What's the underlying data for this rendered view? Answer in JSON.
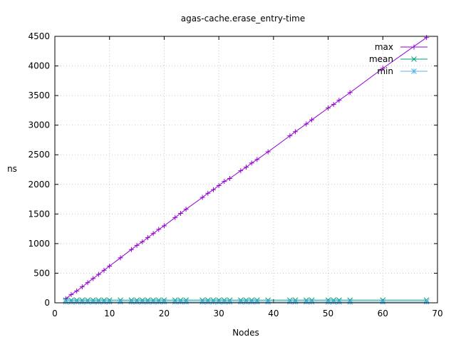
{
  "chart_data": {
    "type": "line",
    "title": "agas-cache.erase_entry-time",
    "xlabel": "Nodes",
    "ylabel": "ns",
    "xlim": [
      0,
      70
    ],
    "ylim": [
      0,
      4500
    ],
    "xticks": [
      0,
      10,
      20,
      30,
      40,
      50,
      60,
      70
    ],
    "yticks": [
      0,
      500,
      1000,
      1500,
      2000,
      2500,
      3000,
      3500,
      4000,
      4500
    ],
    "grid": true,
    "legend_position": "top-right",
    "x": [
      2,
      3,
      4,
      5,
      6,
      7,
      8,
      9,
      10,
      12,
      14,
      15,
      16,
      17,
      18,
      19,
      20,
      22,
      23,
      24,
      27,
      28,
      29,
      30,
      31,
      32,
      34,
      35,
      36,
      37,
      39,
      43,
      44,
      46,
      47,
      50,
      51,
      52,
      54,
      60,
      68
    ],
    "series": [
      {
        "name": "max",
        "color": "#9400d3",
        "marker": "plus",
        "values": [
          70,
          140,
          200,
          270,
          340,
          410,
          480,
          550,
          620,
          760,
          900,
          970,
          1030,
          1100,
          1170,
          1240,
          1300,
          1440,
          1510,
          1580,
          1780,
          1850,
          1910,
          1980,
          2050,
          2100,
          2230,
          2290,
          2360,
          2420,
          2550,
          2820,
          2890,
          3020,
          3090,
          3290,
          3350,
          3420,
          3550,
          3960,
          4480
        ]
      },
      {
        "name": "mean",
        "color": "#009e73",
        "marker": "cross",
        "values": [
          45,
          45,
          45,
          45,
          45,
          45,
          45,
          45,
          45,
          45,
          45,
          45,
          45,
          45,
          45,
          45,
          45,
          45,
          45,
          45,
          45,
          45,
          45,
          45,
          45,
          45,
          45,
          45,
          45,
          45,
          45,
          45,
          45,
          45,
          45,
          45,
          45,
          45,
          45,
          45,
          45
        ]
      },
      {
        "name": "min",
        "color": "#56b4e9",
        "marker": "star",
        "values": [
          15,
          15,
          15,
          15,
          15,
          15,
          15,
          15,
          15,
          15,
          15,
          15,
          15,
          15,
          15,
          15,
          15,
          15,
          15,
          15,
          15,
          15,
          15,
          15,
          15,
          15,
          15,
          15,
          15,
          15,
          15,
          15,
          15,
          15,
          15,
          15,
          15,
          15,
          15,
          15,
          15
        ]
      }
    ]
  }
}
